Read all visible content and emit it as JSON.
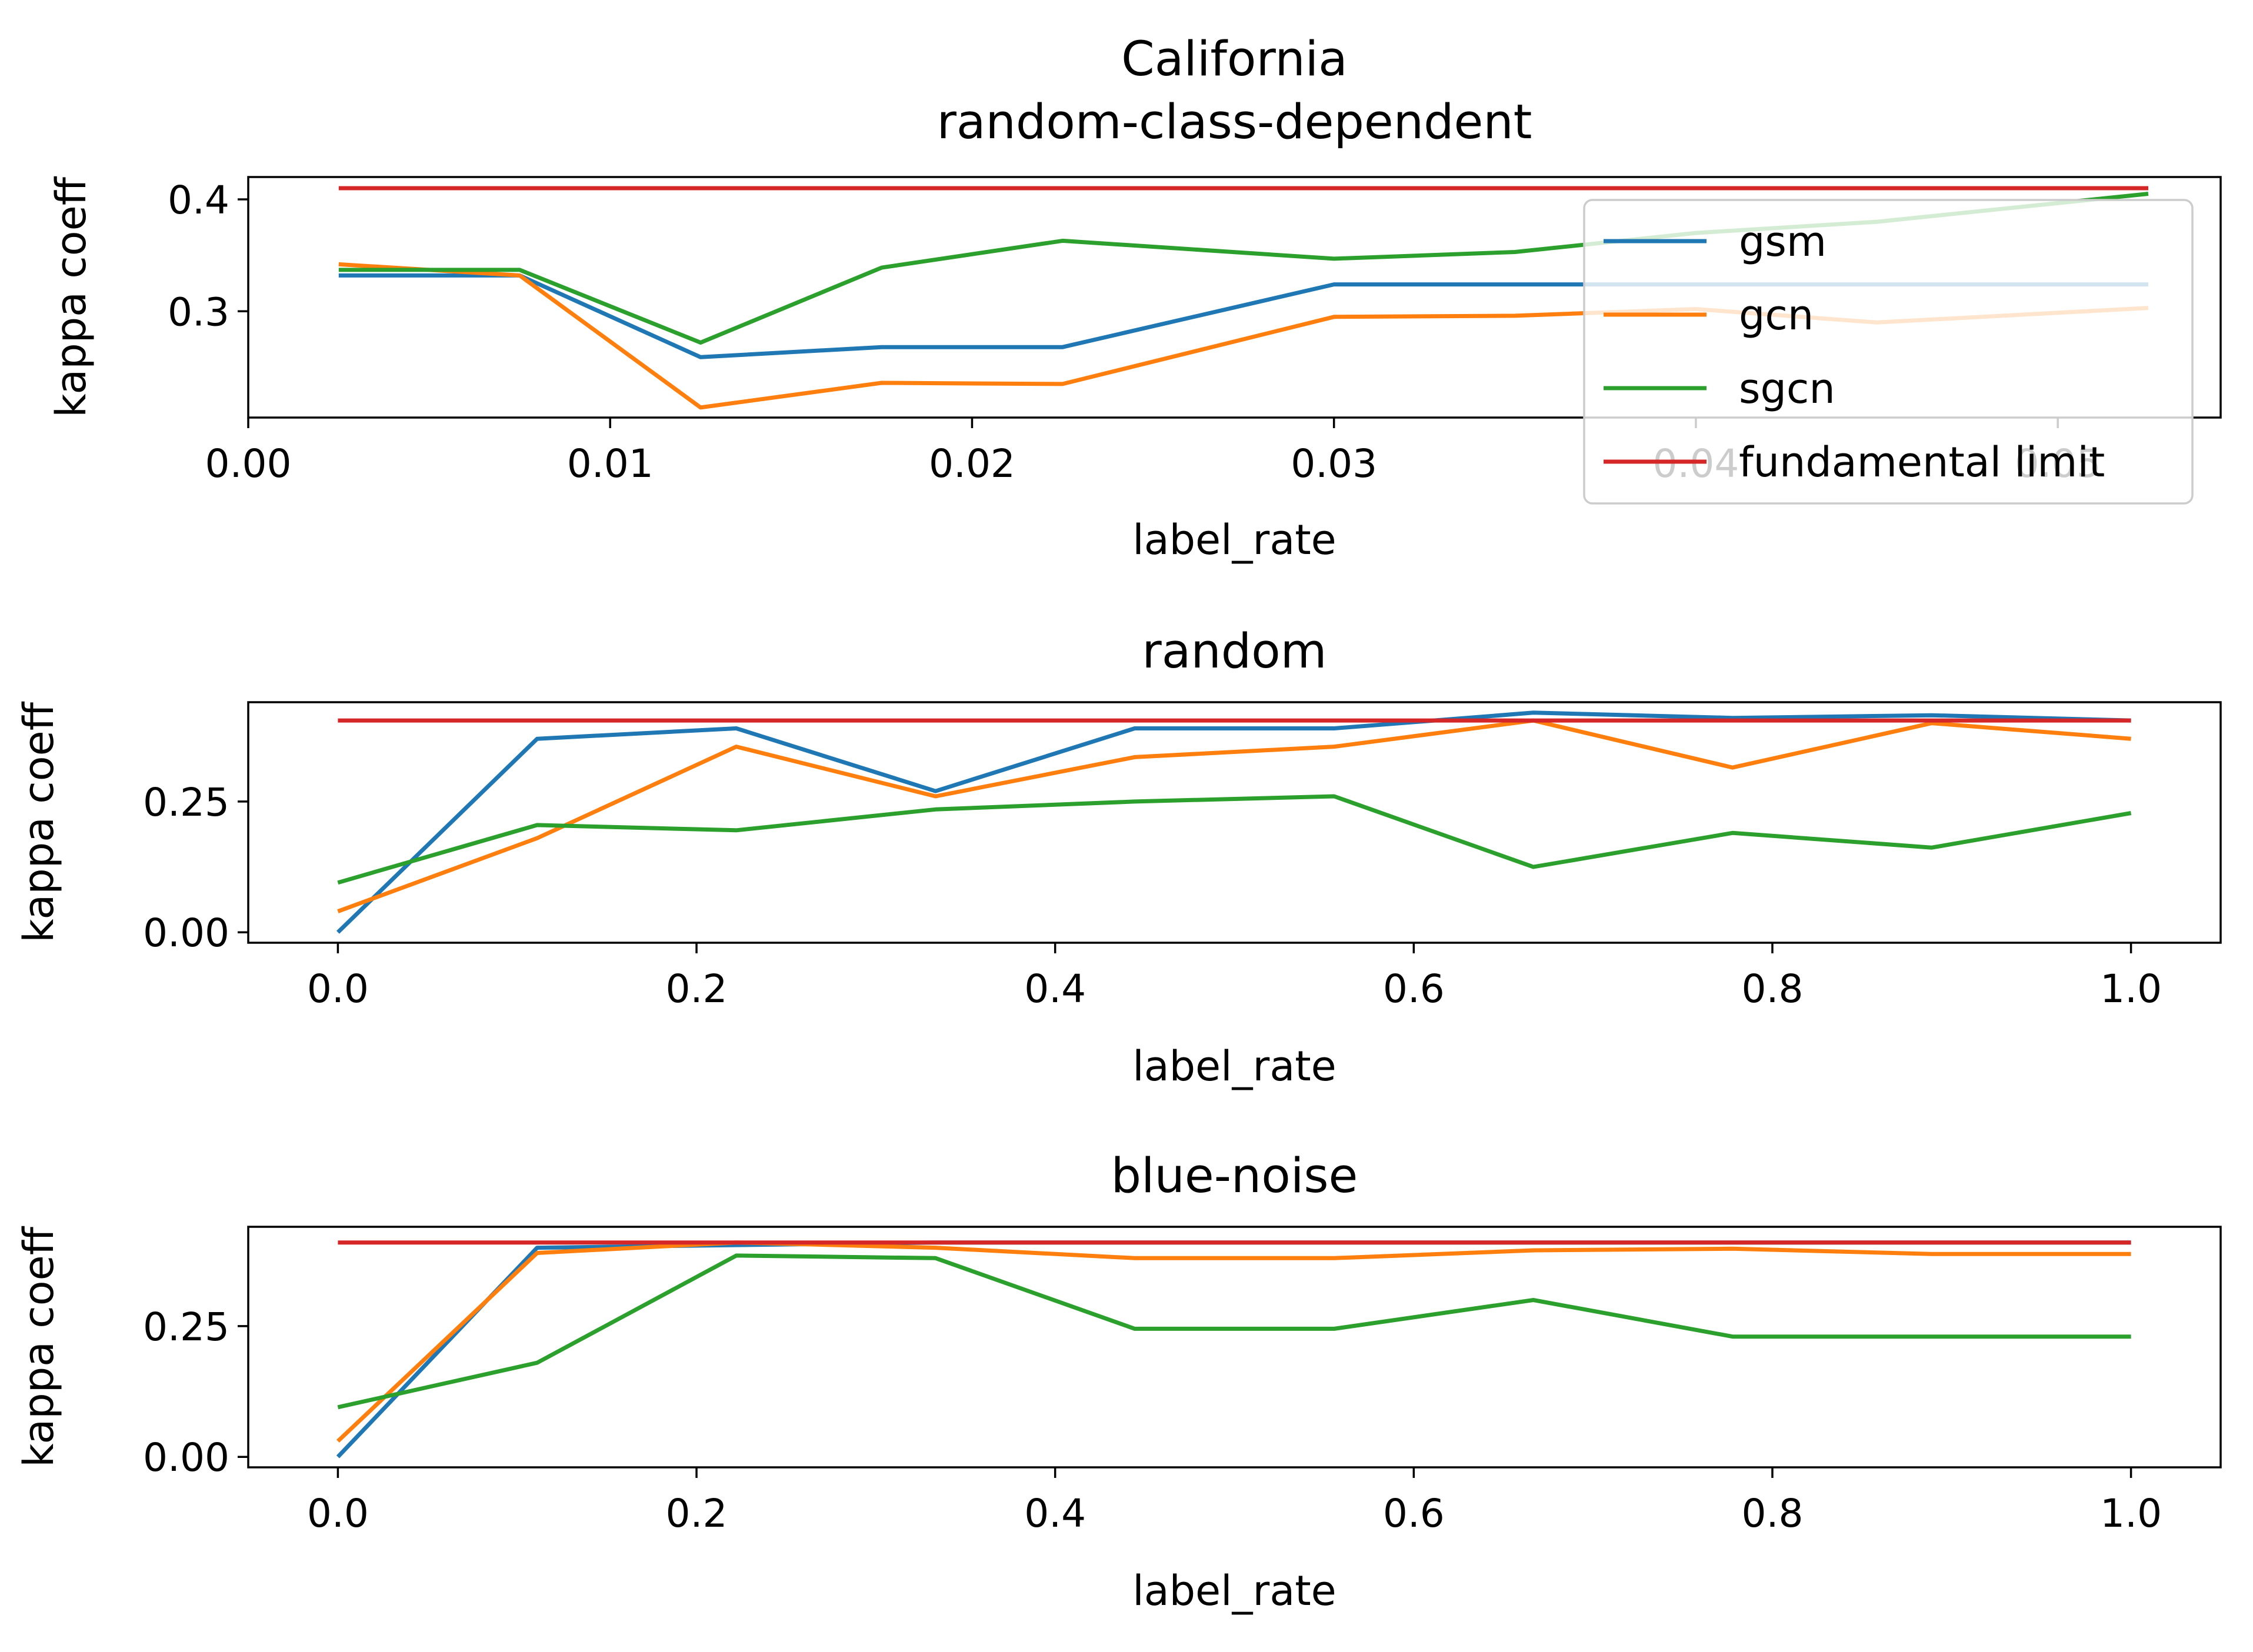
{
  "chart_data": [
    {
      "type": "line",
      "title": "California\nrandom-class-dependent",
      "xlabel": "label_rate",
      "ylabel": "kappa coeff",
      "xlim": [
        0,
        0.0545
      ],
      "ylim": [
        0.205,
        0.42
      ],
      "xticks": [
        "0.00",
        "0.01",
        "0.02",
        "0.03",
        "0.04",
        "0.05"
      ],
      "yticks": [
        "0.3",
        "0.4"
      ],
      "x": [
        0.0025,
        0.0075,
        0.0125,
        0.0175,
        0.0225,
        0.03,
        0.035,
        0.04,
        0.045,
        0.0525
      ],
      "series": [
        {
          "name": "gsm",
          "color": "#1f77b4",
          "values": [
            0.332,
            0.332,
            0.259,
            0.268,
            0.268,
            0.324,
            0.324,
            0.324,
            0.324,
            0.324
          ]
        },
        {
          "name": "gcn",
          "color": "#ff7f0e",
          "values": [
            0.342,
            0.332,
            0.214,
            0.236,
            0.235,
            0.295,
            0.296,
            0.302,
            0.29,
            0.303
          ]
        },
        {
          "name": "sgcn",
          "color": "#2ca02c",
          "values": [
            0.337,
            0.337,
            0.272,
            0.339,
            0.363,
            0.347,
            0.353,
            0.37,
            0.38,
            0.405
          ]
        },
        {
          "name": "fundamental limit",
          "color": "#d62728",
          "values": [
            0.41,
            0.41,
            0.41,
            0.41,
            0.41,
            0.41,
            0.41,
            0.41,
            0.41,
            0.41
          ]
        }
      ],
      "legend": "upper-right"
    },
    {
      "type": "line",
      "title": "random",
      "xlabel": "label_rate",
      "ylabel": "kappa coeff",
      "xlim": [
        -0.05,
        1.05
      ],
      "ylim": [
        -0.02,
        0.44
      ],
      "xticks": [
        "0.0",
        "0.2",
        "0.4",
        "0.6",
        "0.8",
        "1.0"
      ],
      "yticks": [
        "0.00",
        "0.25"
      ],
      "x": [
        0.0,
        0.1111,
        0.2222,
        0.3333,
        0.4444,
        0.5556,
        0.6667,
        0.7778,
        0.8889,
        1.0
      ],
      "series": [
        {
          "name": "gsm",
          "color": "#1f77b4",
          "values": [
            0.0,
            0.37,
            0.39,
            0.27,
            0.39,
            0.39,
            0.42,
            0.41,
            0.415,
            0.405
          ]
        },
        {
          "name": "gcn",
          "color": "#ff7f0e",
          "values": [
            0.04,
            0.18,
            0.355,
            0.26,
            0.335,
            0.355,
            0.405,
            0.315,
            0.4,
            0.37
          ]
        },
        {
          "name": "sgcn",
          "color": "#2ca02c",
          "values": [
            0.095,
            0.205,
            0.195,
            0.235,
            0.25,
            0.26,
            0.125,
            0.19,
            0.162,
            0.228
          ]
        },
        {
          "name": "fundamental limit",
          "color": "#d62728",
          "values": [
            0.405,
            0.405,
            0.405,
            0.405,
            0.405,
            0.405,
            0.405,
            0.405,
            0.405,
            0.405
          ]
        }
      ]
    },
    {
      "type": "line",
      "title": "blue-noise",
      "xlabel": "label_rate",
      "ylabel": "kappa coeff",
      "xlim": [
        -0.05,
        1.05
      ],
      "ylim": [
        -0.02,
        0.44
      ],
      "xticks": [
        "0.0",
        "0.2",
        "0.4",
        "0.6",
        "0.8",
        "1.0"
      ],
      "yticks": [
        "0.00",
        "0.25"
      ],
      "x": [
        0.0,
        0.1111,
        0.2222,
        0.3333,
        0.4444,
        0.5556,
        0.6667,
        0.7778,
        0.8889,
        1.0
      ],
      "series": [
        {
          "name": "gsm",
          "color": "#1f77b4",
          "values": [
            0.0,
            0.4,
            0.405,
            0.41,
            0.41,
            0.41,
            0.41,
            0.41,
            0.41,
            0.41
          ]
        },
        {
          "name": "gcn",
          "color": "#ff7f0e",
          "values": [
            0.03,
            0.39,
            0.41,
            0.4,
            0.38,
            0.38,
            0.395,
            0.398,
            0.388,
            0.388
          ]
        },
        {
          "name": "sgcn",
          "color": "#2ca02c",
          "values": [
            0.095,
            0.18,
            0.385,
            0.38,
            0.245,
            0.245,
            0.3,
            0.23,
            0.23,
            0.23
          ]
        },
        {
          "name": "fundamental limit",
          "color": "#d62728",
          "values": [
            0.41,
            0.41,
            0.41,
            0.41,
            0.41,
            0.41,
            0.41,
            0.41,
            0.41,
            0.41
          ]
        }
      ]
    }
  ]
}
